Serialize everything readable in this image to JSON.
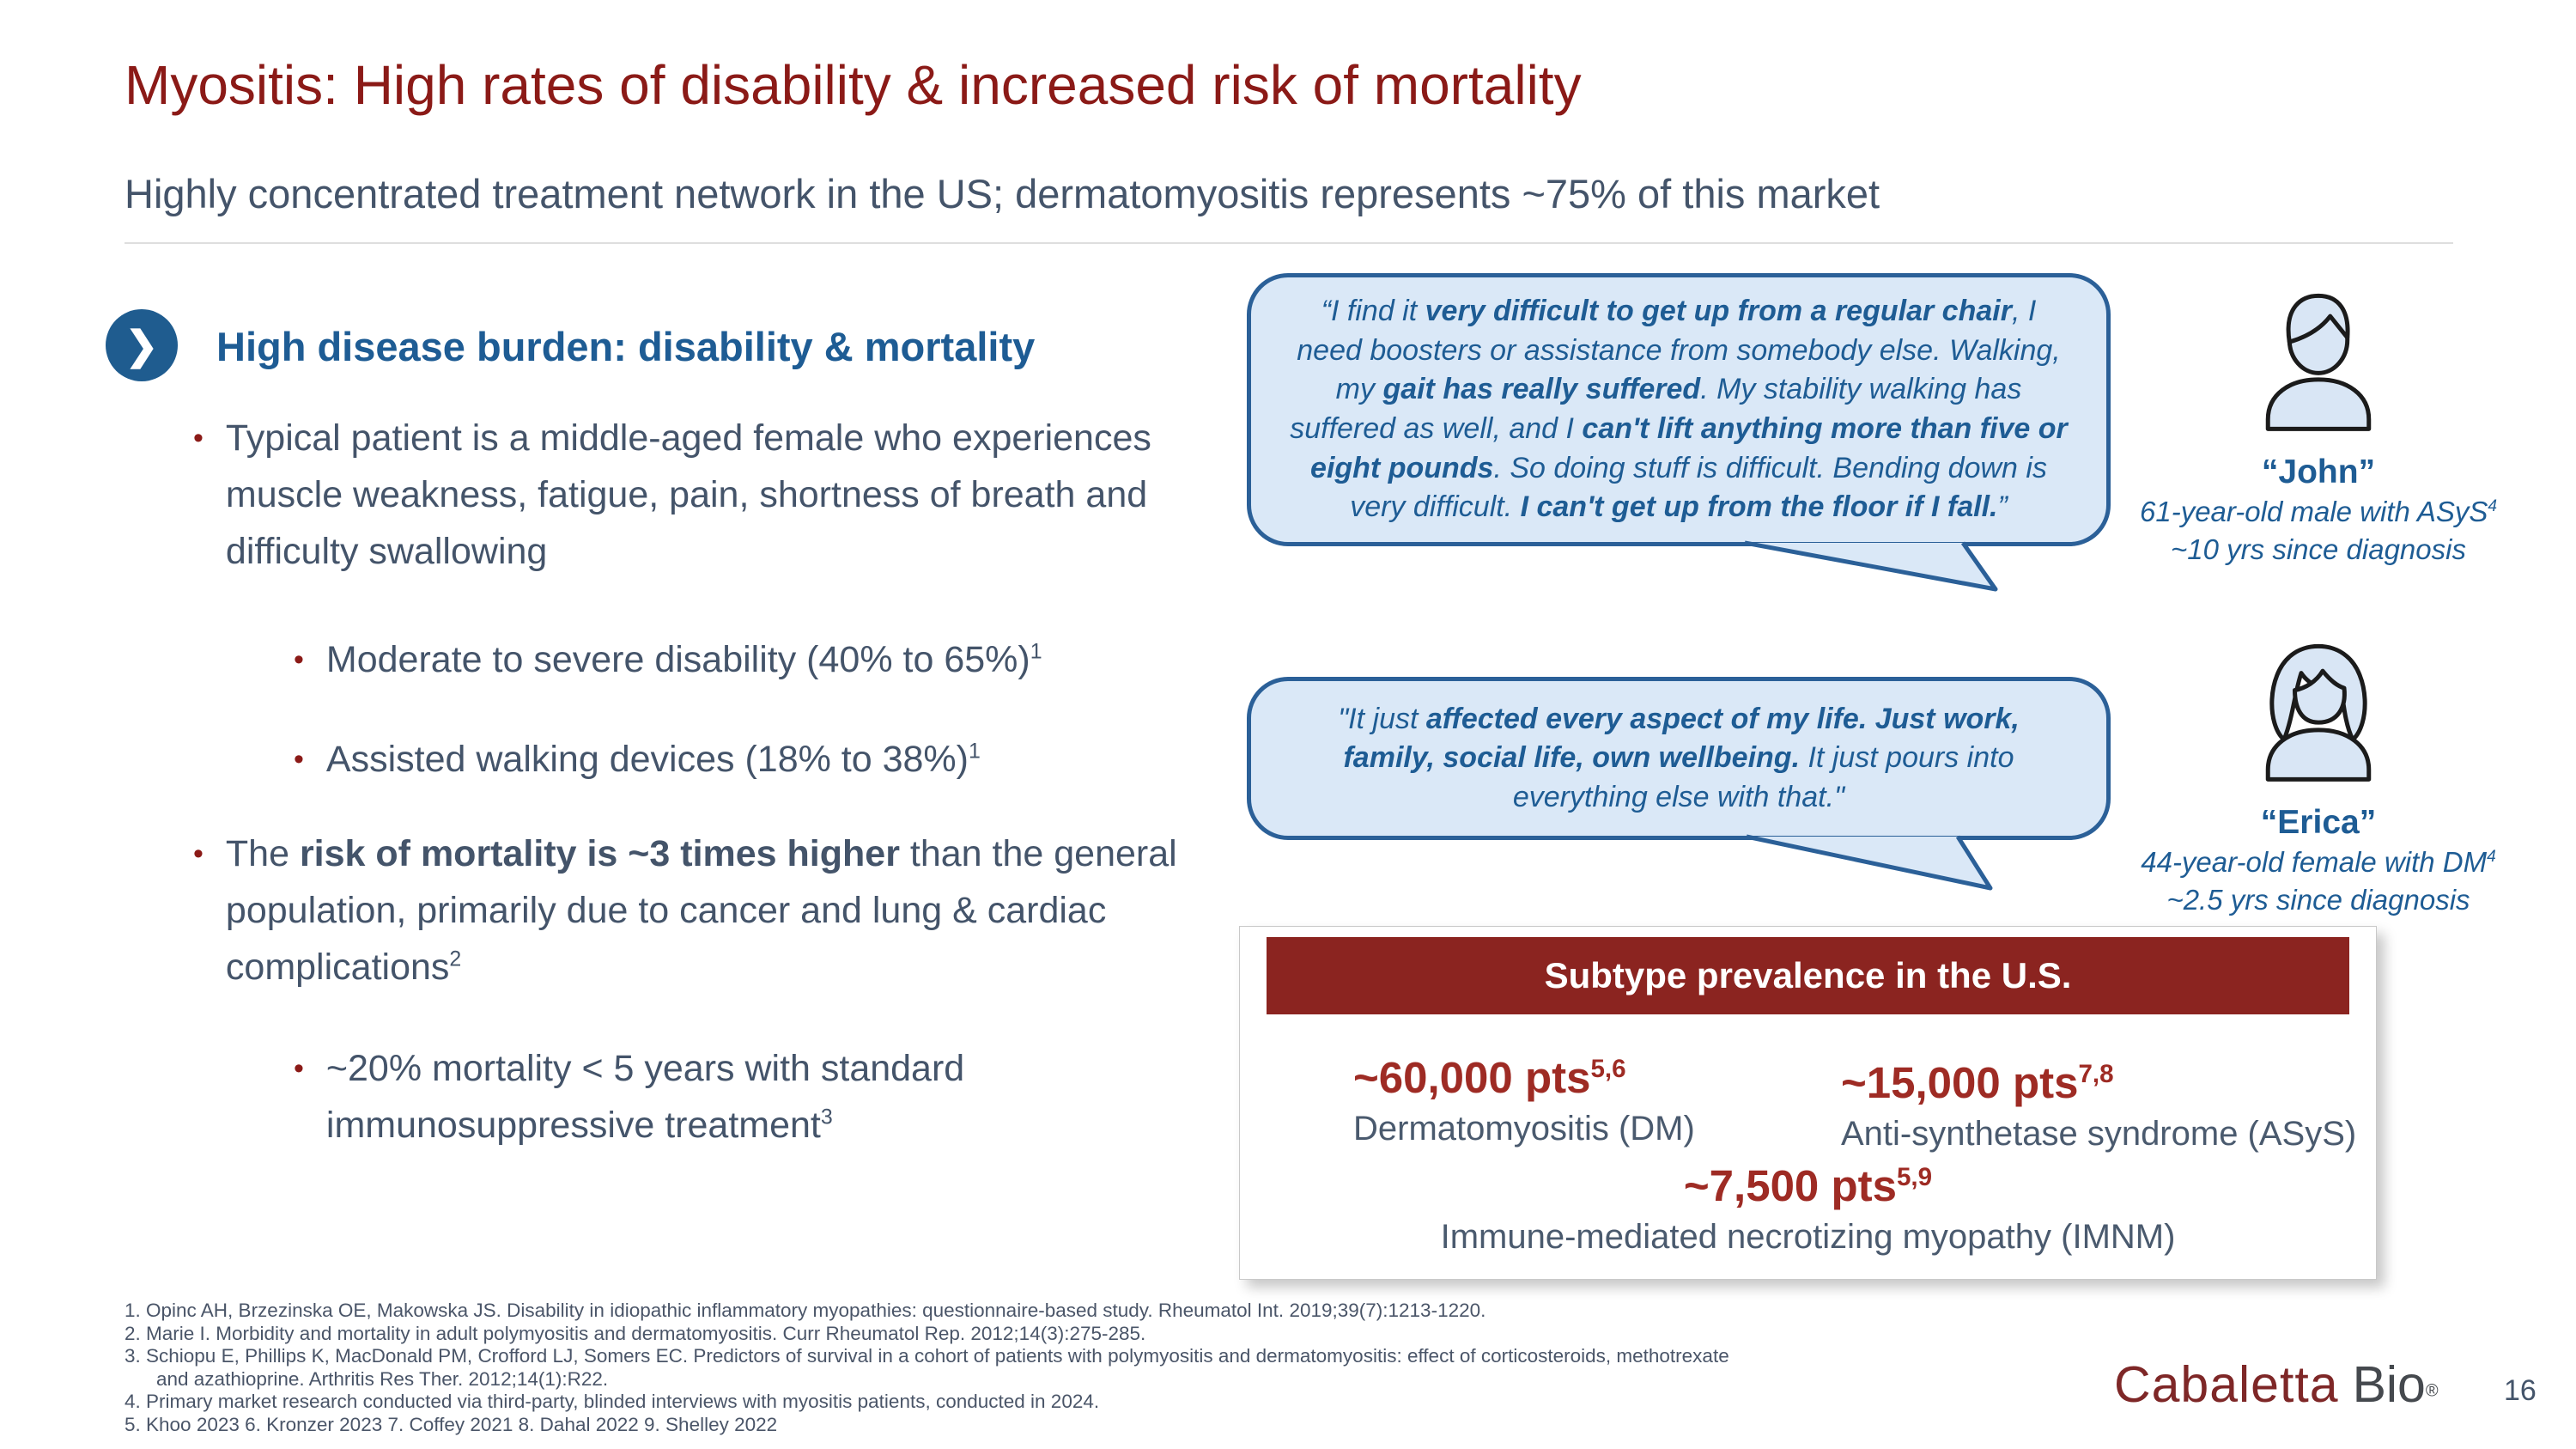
{
  "slide": {
    "title": "Myositis: High rates of disability & increased risk of mortality",
    "subtitle": "Highly concentrated treatment network in the US; dermatomyositis represents ~75% of this market"
  },
  "colors": {
    "title_red": "#8B1A17",
    "banner_red": "#8B2420",
    "stat_red": "#9E2B24",
    "heading_blue": "#1E5C94",
    "body_gray": "#44546A",
    "bubble_fill": "#DAE8F7",
    "bubble_border": "#2B6098"
  },
  "left_panel": {
    "chevron_icon": "chevron-right",
    "heading": "High disease burden: disability & mortality",
    "bullet1": {
      "segments": [
        {
          "t": "Typical patient is a middle-aged female who experiences muscle weakness, fatigue, pain, shortness of breath and difficulty swallowing"
        }
      ]
    },
    "sub_bullet1": {
      "segments": [
        {
          "t": "Moderate to severe disability (40% to 65%)"
        },
        {
          "t": "1",
          "sup": true
        }
      ]
    },
    "sub_bullet2": {
      "segments": [
        {
          "t": "Assisted walking devices (18% to 38%)"
        },
        {
          "t": "1",
          "sup": true
        }
      ]
    },
    "bullet2": {
      "segments": [
        {
          "t": "The "
        },
        {
          "t": "risk of mortality is ~3 times higher",
          "b": true
        },
        {
          "t": " than the general population, primarily due to cancer and lung & cardiac complications"
        },
        {
          "t": "2",
          "sup": true
        }
      ]
    },
    "sub_bullet3": {
      "segments": [
        {
          "t": "~20% mortality < 5 years with standard immunosuppressive treatment"
        },
        {
          "t": "3",
          "sup": true
        }
      ]
    }
  },
  "quotes": {
    "john": {
      "segments": [
        {
          "t": "“I find it "
        },
        {
          "t": "very difficult to get up from a regular chair",
          "b": true
        },
        {
          "t": ", I need boosters or assistance from somebody else. Walking, my "
        },
        {
          "t": "gait has really suffered",
          "b": true
        },
        {
          "t": ". My stability walking has suffered as well, and I "
        },
        {
          "t": "can't lift anything more than five or eight pounds",
          "b": true
        },
        {
          "t": ". So doing stuff is difficult. Bending down is very difficult. "
        },
        {
          "t": "I can't get up from the floor if I fall.",
          "b": true
        },
        {
          "t": "”"
        }
      ]
    },
    "erica": {
      "segments": [
        {
          "t": "\"It just "
        },
        {
          "t": "affected every aspect of my life. Just work, family, social life, own wellbeing.",
          "b": true
        },
        {
          "t": " It just pours into everything else with that.\""
        }
      ]
    }
  },
  "personas": {
    "john": {
      "icon": "male-person",
      "name": "“John”",
      "desc1": {
        "segments": [
          {
            "t": "61-year-old male with ASyS"
          },
          {
            "t": "4",
            "sup": true
          }
        ]
      },
      "desc2": "~10 yrs since diagnosis"
    },
    "erica": {
      "icon": "female-person",
      "name": "“Erica”",
      "desc1": {
        "segments": [
          {
            "t": "44-year-old female with DM"
          },
          {
            "t": "4",
            "sup": true
          }
        ]
      },
      "desc2": "~2.5 yrs since diagnosis"
    }
  },
  "prevalence": {
    "header": "Subtype prevalence in the U.S.",
    "dm": {
      "value": {
        "segments": [
          {
            "t": "~60,000 pts"
          },
          {
            "t": "5,6",
            "sup": true
          }
        ]
      },
      "label": "Dermatomyositis (DM)"
    },
    "asys": {
      "value": {
        "segments": [
          {
            "t": "~15,000 pts"
          },
          {
            "t": "7,8",
            "sup": true
          }
        ]
      },
      "label": "Anti-synthetase syndrome (ASyS)"
    },
    "imnm": {
      "value": {
        "segments": [
          {
            "t": "~7,500 pts"
          },
          {
            "t": "5,9",
            "sup": true
          }
        ]
      },
      "label": "Immune-mediated necrotizing myopathy (IMNM)"
    }
  },
  "footnotes": {
    "lines": [
      "1. Opinc AH, Brzezinska OE, Makowska JS. Disability in idiopathic inflammatory myopathies: questionnaire-based study. Rheumatol Int. 2019;39(7):1213-1220.",
      "2. Marie I. Morbidity and mortality in adult polymyositis and dermatomyositis. Curr Rheumatol Rep. 2012;14(3):275-285.",
      "3. Schiopu E, Phillips K, MacDonald PM, Crofford LJ, Somers EC. Predictors of survival in a cohort of patients with polymyositis and dermatomyositis: effect of corticosteroids, methotrexate",
      "and azathioprine. Arthritis Res Ther. 2012;14(1):R22.",
      "4. Primary market research conducted via third-party, blinded interviews with myositis patients, conducted in 2024.",
      "5. Khoo 2023 6. Kronzer 2023 7. Coffey 2021 8. Dahal 2022 9. Shelley 2022"
    ]
  },
  "footer": {
    "logo_part1": "Cabaletta",
    "logo_part2": "Bio",
    "registered_mark": "®",
    "page_number": "16"
  }
}
